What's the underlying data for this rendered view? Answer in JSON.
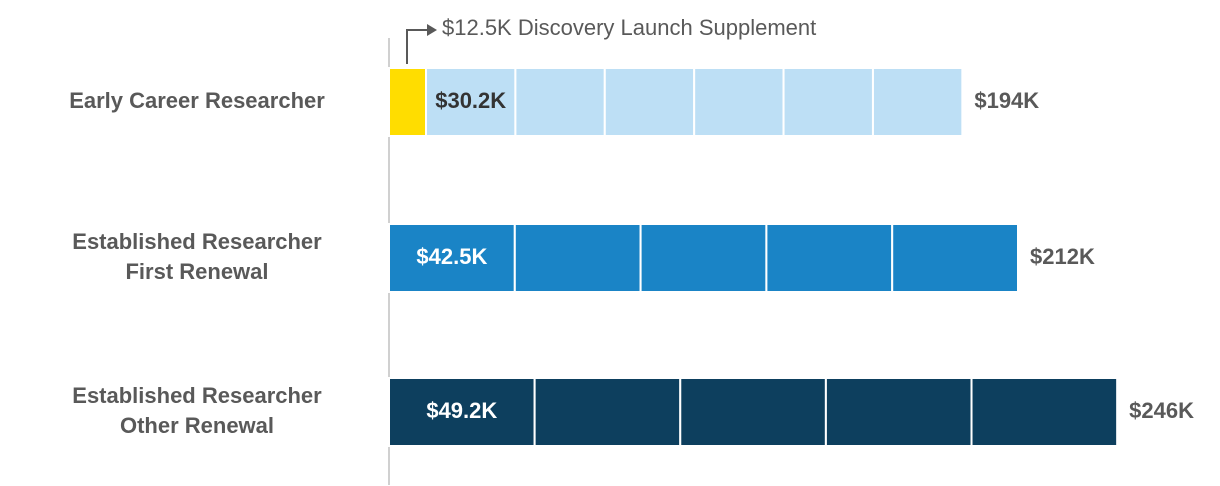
{
  "chart_data": {
    "type": "segmented-bar",
    "orientation": "horizontal",
    "xlim": [
      0,
      250
    ],
    "categories": [
      [
        "Early Career Researcher"
      ],
      [
        "Established Researcher",
        "First Renewal"
      ],
      [
        "Established Researcher",
        "Other Renewal"
      ]
    ],
    "bars": [
      {
        "color": "#bddff5",
        "label_color": "#333333",
        "supplement": 12.5,
        "supplement_color": "#ffdd00",
        "segments": [
          30.2,
          30.2,
          30.2,
          30.2,
          30.2,
          30.2
        ],
        "value_label": "$30.2K",
        "total": 194,
        "total_label": "$194K"
      },
      {
        "color": "#1a84c6",
        "label_color": "#ffffff",
        "segments": [
          42.5,
          42.5,
          42.5,
          42.5,
          42.5
        ],
        "value_label": "$42.5K",
        "total": 212,
        "total_label": "$212K"
      },
      {
        "color": "#0d3f5e",
        "label_color": "#ffffff",
        "segments": [
          49.2,
          49.2,
          49.2,
          49.2,
          49.2
        ],
        "value_label": "$49.2K",
        "total": 246,
        "total_label": "$246K"
      }
    ],
    "annotation": "$12.5K Discovery Launch Supplement"
  }
}
